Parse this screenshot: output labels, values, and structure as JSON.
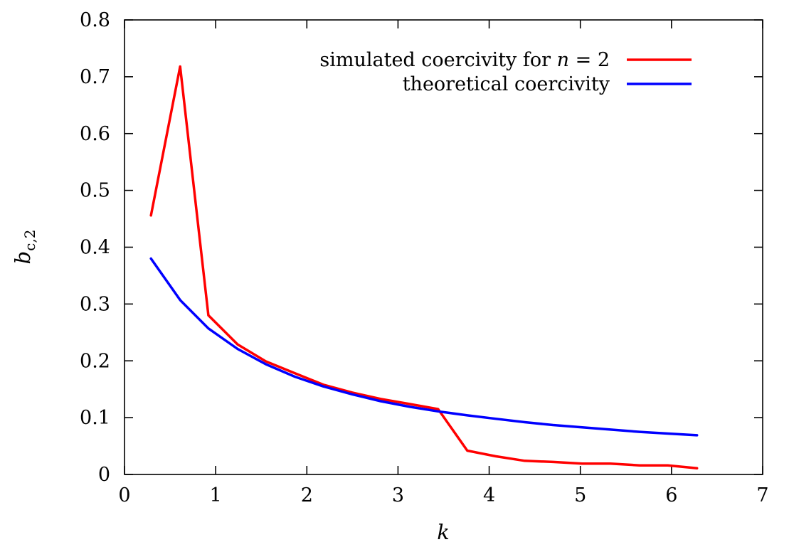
{
  "chart_data": {
    "type": "line",
    "title": "",
    "xlabel": "k",
    "ylabel_main": "b",
    "ylabel_sub": "c,2",
    "xlim": [
      0,
      7
    ],
    "ylim": [
      0,
      0.8
    ],
    "xticks": [
      0,
      1,
      2,
      3,
      4,
      5,
      6,
      7
    ],
    "xtick_labels": [
      "0",
      "1",
      "2",
      "3",
      "4",
      "5",
      "6",
      "7"
    ],
    "yticks": [
      0,
      0.1,
      0.2,
      0.3,
      0.4,
      0.5,
      0.6,
      0.7,
      0.8
    ],
    "ytick_labels": [
      "0",
      "0.1",
      "0.2",
      "0.3",
      "0.4",
      "0.5",
      "0.6",
      "0.7",
      "0.8"
    ],
    "grid": false,
    "legend_position": "top-right",
    "series": [
      {
        "name": "simulated coercivity for n = 2",
        "label_prefix": "simulated coercivity for ",
        "label_var": "n",
        "label_suffix": " = 2",
        "color": "#ff0000",
        "x": [
          0.29,
          0.61,
          0.92,
          1.24,
          1.55,
          1.87,
          2.18,
          2.5,
          2.81,
          3.13,
          3.44,
          3.76,
          4.07,
          4.39,
          4.7,
          5.02,
          5.33,
          5.65,
          5.96,
          6.28
        ],
        "y": [
          0.456,
          0.718,
          0.28,
          0.229,
          0.199,
          0.178,
          0.158,
          0.144,
          0.133,
          0.124,
          0.115,
          0.042,
          0.032,
          0.024,
          0.022,
          0.019,
          0.019,
          0.016,
          0.016,
          0.011
        ]
      },
      {
        "name": "theoretical coercivity",
        "label_prefix": "theoretical coercivity",
        "label_var": "",
        "label_suffix": "",
        "color": "#0000ff",
        "x": [
          0.29,
          0.61,
          0.92,
          1.24,
          1.55,
          1.87,
          2.18,
          2.5,
          2.81,
          3.13,
          3.44,
          3.76,
          4.07,
          4.39,
          4.7,
          5.02,
          5.33,
          5.65,
          5.96,
          6.28
        ],
        "y": [
          0.38,
          0.307,
          0.257,
          0.221,
          0.194,
          0.172,
          0.155,
          0.141,
          0.129,
          0.119,
          0.111,
          0.104,
          0.098,
          0.092,
          0.087,
          0.083,
          0.079,
          0.075,
          0.072,
          0.069
        ]
      }
    ]
  }
}
